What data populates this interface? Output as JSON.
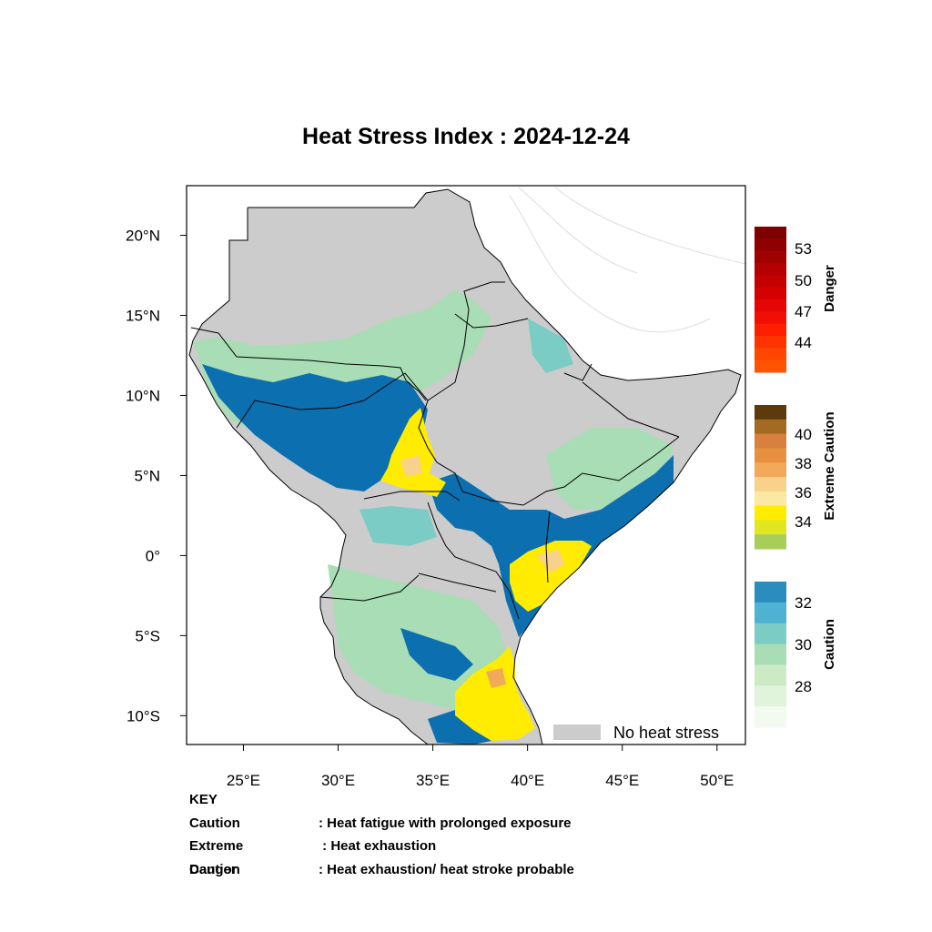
{
  "title": "Heat Stress Index : 2024-12-24",
  "map": {
    "lon_range": [
      22,
      51.5
    ],
    "lat_range": [
      -11.8,
      23.1
    ],
    "lon_ticks": [
      "25°E",
      "30°E",
      "35°E",
      "40°E",
      "45°E",
      "50°E"
    ],
    "lat_ticks": [
      "20°N",
      "15°N",
      "10°N",
      "5°N",
      "0°",
      "5°S",
      "10°S"
    ],
    "no_stress_color": "#cccccc",
    "no_stress_label": "No heat stress"
  },
  "colorbars": {
    "danger": {
      "label": "Danger",
      "ticks": [
        "53",
        "50",
        "47",
        "44"
      ],
      "colors": [
        "#7f0000",
        "#8f0000",
        "#a10000",
        "#b30000",
        "#c40000",
        "#d50000",
        "#e40505",
        "#f20d05",
        "#ff1e00",
        "#ff3300",
        "#ff4700",
        "#ff5500"
      ]
    },
    "extreme_caution": {
      "label": "Extreme Caution",
      "ticks": [
        "40",
        "38",
        "36",
        "34"
      ],
      "colors": [
        "#5c3a0c",
        "#a36a23",
        "#d8803e",
        "#e7903f",
        "#f2a95a",
        "#f8d28a",
        "#fbe9a3",
        "#ffec00",
        "#e2e620",
        "#a9cd5a"
      ]
    },
    "caution": {
      "label": "Caution",
      "ticks": [
        "32",
        "30",
        "28"
      ],
      "colors": [
        "#2b8cbe",
        "#4eb3d3",
        "#7bccc4",
        "#a8ddb5",
        "#ccebc5",
        "#e0f3db",
        "#f3faf0"
      ]
    }
  },
  "key": {
    "heading": "KEY",
    "rows": [
      {
        "term": "Caution",
        "desc": ": Heat fatigue with prolonged exposure"
      },
      {
        "term": "Extreme Caution",
        "desc": " : Heat exhaustion"
      },
      {
        "term": "Danger",
        "desc": ": Heat exhaustion/ heat stroke probable"
      }
    ]
  }
}
